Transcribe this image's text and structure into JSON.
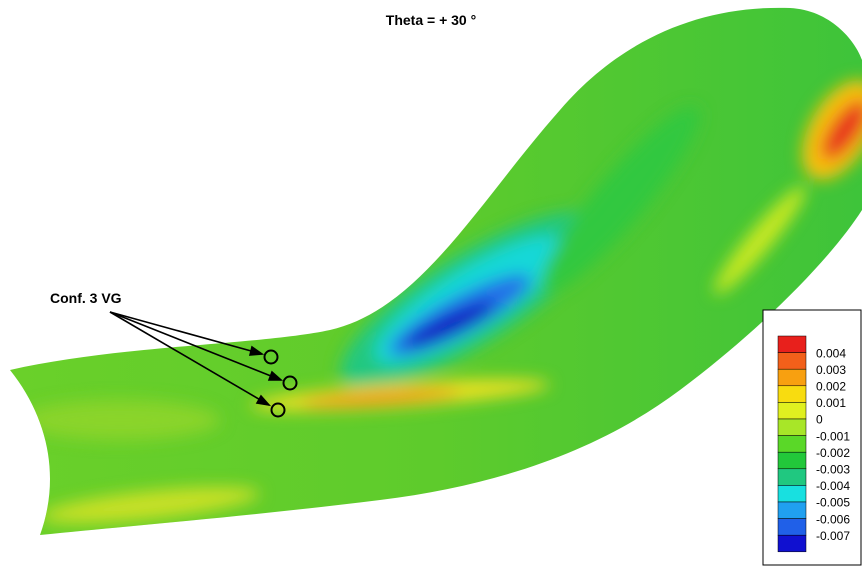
{
  "title": "Theta = + 30 °",
  "annotation": "Conf. 3 VG",
  "legend": {
    "labels": [
      "0.004",
      "0.003",
      "0.002",
      "0.001",
      "0",
      "-0.001",
      "-0.002",
      "-0.003",
      "-0.004",
      "-0.005",
      "-0.006",
      "-0.007"
    ],
    "colors": [
      "#e8201c",
      "#f2601a",
      "#f8a010",
      "#f8dc10",
      "#e0f020",
      "#a8e628",
      "#5ad828",
      "#22c83a",
      "#20c880",
      "#18e0e0",
      "#20a0f0",
      "#2060e8",
      "#1010d0"
    ]
  }
}
